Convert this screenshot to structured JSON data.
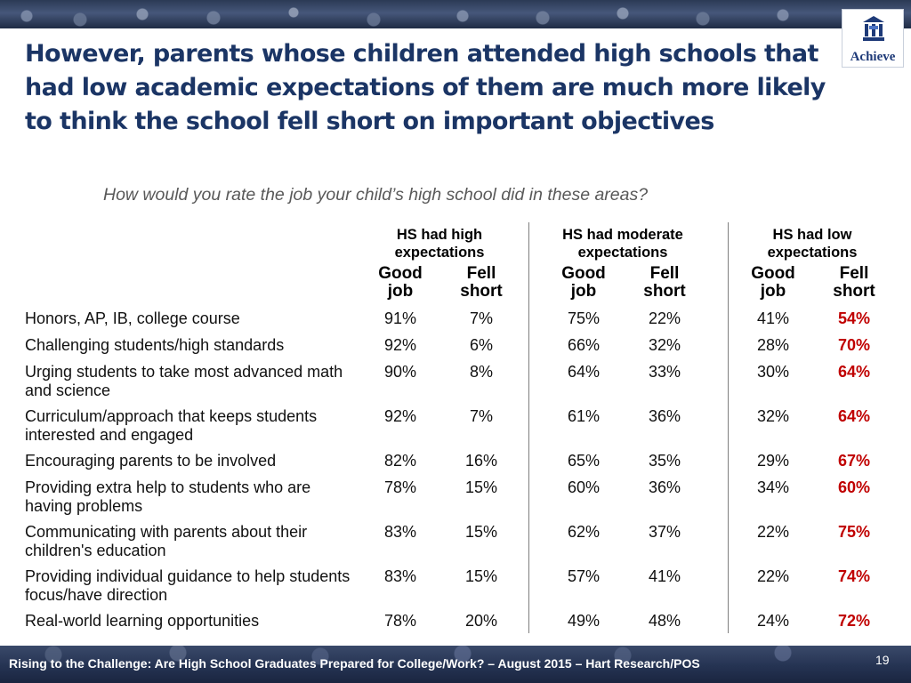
{
  "slide": {
    "title": "However, parents whose children attended high schools that had low academic expectations of them are much more likely to think the school fell short on important objectives",
    "question": "How would you rate the job your child’s high school did in these areas?",
    "logo_text": "Achieve",
    "footer": "Rising to the Challenge:  Are High School Graduates Prepared for College/Work? – August 2015 – Hart Research/POS",
    "page_number": "19"
  },
  "colors": {
    "title": "#1b3565",
    "highlight": "#c00000",
    "question": "#595959",
    "footer_bg": "#253352"
  },
  "table": {
    "groups": [
      {
        "line1": "HS had high",
        "line2": "expectations"
      },
      {
        "line1": "HS had moderate",
        "line2": "expectations"
      },
      {
        "line1": "HS had low",
        "line2": "expectations"
      }
    ],
    "subheads": {
      "good_line1": "Good",
      "good_line2": "job",
      "fell_line1": "Fell",
      "fell_line2": "short"
    },
    "rows": [
      {
        "label": "Honors, AP, IB, college course",
        "values": [
          "91%",
          "7%",
          "75%",
          "22%",
          "41%",
          "54%"
        ]
      },
      {
        "label": "Challenging students/high standards",
        "values": [
          "92%",
          "6%",
          "66%",
          "32%",
          "28%",
          "70%"
        ]
      },
      {
        "label": "Urging students to take most advanced math and science",
        "values": [
          "90%",
          "8%",
          "64%",
          "33%",
          "30%",
          "64%"
        ]
      },
      {
        "label": "Curriculum/approach that keeps students interested and engaged",
        "values": [
          "92%",
          "7%",
          "61%",
          "36%",
          "32%",
          "64%"
        ]
      },
      {
        "label": "Encouraging parents to be involved",
        "values": [
          "82%",
          "16%",
          "65%",
          "35%",
          "29%",
          "67%"
        ]
      },
      {
        "label": "Providing extra help to students who are having problems",
        "values": [
          "78%",
          "15%",
          "60%",
          "36%",
          "34%",
          "60%"
        ]
      },
      {
        "label": "Communicating with parents about their children's education",
        "values": [
          "83%",
          "15%",
          "62%",
          "37%",
          "22%",
          "75%"
        ]
      },
      {
        "label": "Providing individual guidance to help students focus/have direction",
        "values": [
          "83%",
          "15%",
          "57%",
          "41%",
          "22%",
          "74%"
        ]
      },
      {
        "label": "Real-world learning opportunities",
        "values": [
          "78%",
          "20%",
          "49%",
          "48%",
          "24%",
          "72%"
        ]
      }
    ]
  }
}
